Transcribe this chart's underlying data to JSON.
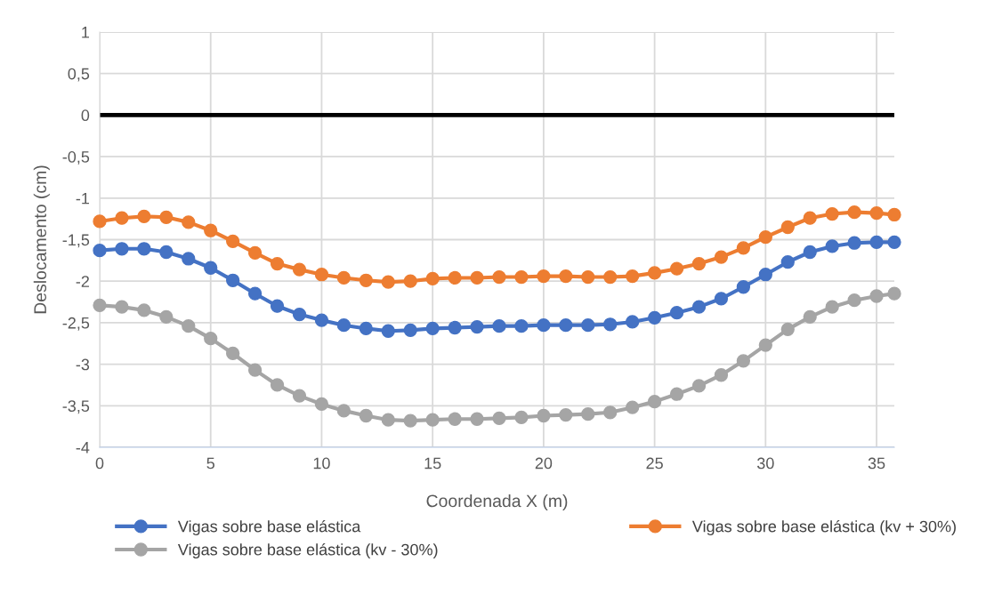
{
  "chart_data": {
    "type": "line",
    "xlabel": "Coordenada X (m)",
    "ylabel": "Deslocamento (cm)",
    "x": [
      0,
      1,
      2,
      3,
      4,
      5,
      6,
      7,
      8,
      9,
      10,
      11,
      12,
      13,
      14,
      15,
      16,
      17,
      18,
      19,
      20,
      21,
      22,
      23,
      24,
      25,
      26,
      27,
      28,
      29,
      30,
      31,
      32,
      33,
      34,
      35,
      35.8
    ],
    "series": [
      {
        "name": "Vigas sobre base elástica",
        "color": "#4472c4",
        "values": [
          -1.63,
          -1.61,
          -1.61,
          -1.65,
          -1.73,
          -1.84,
          -1.99,
          -2.15,
          -2.3,
          -2.4,
          -2.47,
          -2.53,
          -2.57,
          -2.6,
          -2.59,
          -2.57,
          -2.56,
          -2.55,
          -2.54,
          -2.54,
          -2.53,
          -2.53,
          -2.53,
          -2.52,
          -2.49,
          -2.44,
          -2.38,
          -2.31,
          -2.21,
          -2.07,
          -1.92,
          -1.77,
          -1.65,
          -1.58,
          -1.54,
          -1.53,
          -1.53
        ]
      },
      {
        "name": "Vigas sobre base elástica (kv + 30%)",
        "color": "#ed7d31",
        "values": [
          -1.28,
          -1.24,
          -1.22,
          -1.23,
          -1.29,
          -1.39,
          -1.52,
          -1.66,
          -1.79,
          -1.86,
          -1.92,
          -1.96,
          -1.99,
          -2.01,
          -2.0,
          -1.97,
          -1.96,
          -1.96,
          -1.95,
          -1.95,
          -1.94,
          -1.94,
          -1.95,
          -1.95,
          -1.94,
          -1.9,
          -1.85,
          -1.79,
          -1.71,
          -1.6,
          -1.47,
          -1.35,
          -1.24,
          -1.19,
          -1.17,
          -1.18,
          -1.2
        ]
      },
      {
        "name": "Vigas sobre base elástica (kv - 30%)",
        "color": "#a5a5a5",
        "values": [
          -2.29,
          -2.31,
          -2.35,
          -2.43,
          -2.54,
          -2.69,
          -2.87,
          -3.07,
          -3.25,
          -3.38,
          -3.48,
          -3.56,
          -3.62,
          -3.67,
          -3.68,
          -3.67,
          -3.66,
          -3.66,
          -3.65,
          -3.64,
          -3.62,
          -3.61,
          -3.6,
          -3.58,
          -3.52,
          -3.45,
          -3.36,
          -3.26,
          -3.13,
          -2.96,
          -2.77,
          -2.58,
          -2.43,
          -2.31,
          -2.23,
          -2.18,
          -2.15
        ]
      }
    ],
    "xlim": [
      0,
      35.8
    ],
    "xticks": [
      0,
      5,
      10,
      15,
      20,
      25,
      30,
      35
    ],
    "ylim": [
      -4,
      1
    ],
    "yticks": [
      {
        "value": 1,
        "label": "1"
      },
      {
        "value": 0.5,
        "label": "0,5"
      },
      {
        "value": 0,
        "label": "0"
      },
      {
        "value": -0.5,
        "label": "-0,5"
      },
      {
        "value": -1,
        "label": "-1"
      },
      {
        "value": -1.5,
        "label": "-1,5"
      },
      {
        "value": -2,
        "label": "-2"
      },
      {
        "value": -2.5,
        "label": "-2,5"
      },
      {
        "value": -3,
        "label": "-3"
      },
      {
        "value": -3.5,
        "label": "-3,5"
      },
      {
        "value": -4,
        "label": "-4"
      }
    ],
    "ref_lines": [
      {
        "axis": "y",
        "value": 0,
        "color": "#000000"
      }
    ],
    "grid": true,
    "legend": "bottom",
    "marker": "circle",
    "line_style": "solid"
  }
}
